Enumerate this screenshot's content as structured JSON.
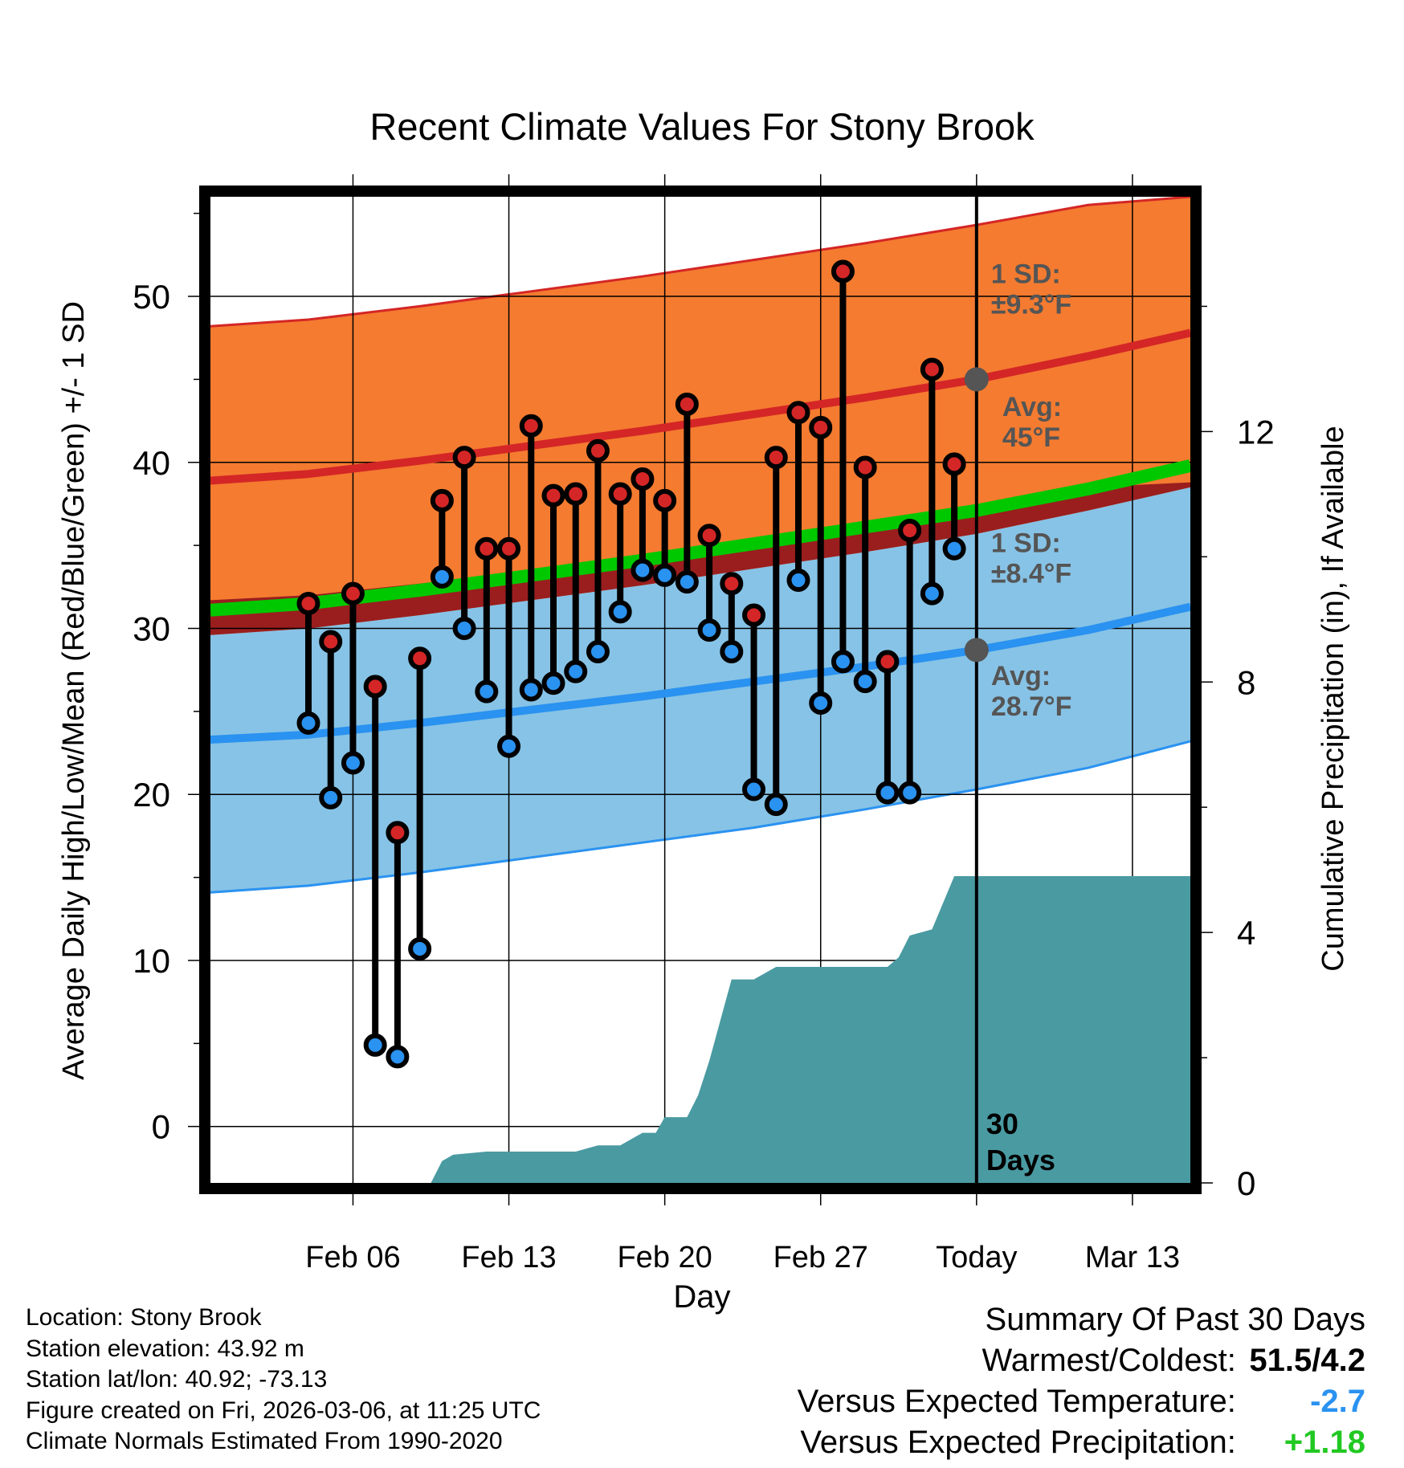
{
  "chart_data": {
    "type": "line",
    "title": "Recent Climate Values For Stony Brook",
    "xlabel": "Day",
    "ylabel": "Average Daily High/Low/Mean (Red/Blue/Green) +/- 1 SD",
    "y2label": "Cumulative Precipitation (in), If Available",
    "ylim": [
      -3.4,
      56
    ],
    "y2lim": [
      0,
      15.75
    ],
    "xlim_days": [
      -34.4,
      9.6
    ],
    "y_ticks": [
      0,
      10,
      20,
      30,
      40,
      50
    ],
    "y2_ticks": [
      0,
      4,
      8,
      12
    ],
    "x_ticks": [
      {
        "day": -28,
        "label": "Feb 06"
      },
      {
        "day": -21,
        "label": "Feb 13"
      },
      {
        "day": -14,
        "label": "Feb 20"
      },
      {
        "day": -7,
        "label": "Feb 27"
      },
      {
        "day": 0,
        "label": "Today"
      },
      {
        "day": 7,
        "label": "Mar 13"
      }
    ],
    "today_day": 0,
    "today_label": [
      "30",
      "Days"
    ],
    "normals": {
      "days": [
        -34.4,
        -30,
        -25,
        -20,
        -15,
        -10,
        -5,
        0,
        5,
        9.6
      ],
      "high_avg": [
        38.9,
        39.3,
        40.1,
        41.0,
        41.9,
        42.9,
        43.9,
        45.0,
        46.4,
        47.8
      ],
      "high_upper": [
        48.2,
        48.6,
        49.4,
        50.3,
        51.2,
        52.2,
        53.2,
        54.3,
        55.5,
        56.0
      ],
      "high_lower": [
        29.6,
        30.0,
        30.8,
        31.7,
        32.6,
        33.6,
        34.6,
        35.7,
        37.1,
        38.5
      ],
      "mean_avg": [
        31.1,
        31.5,
        32.3,
        33.2,
        34.1,
        35.1,
        36.1,
        37.1,
        38.4,
        39.8
      ],
      "low_avg": [
        23.3,
        23.6,
        24.3,
        25.1,
        25.9,
        26.8,
        27.7,
        28.7,
        29.9,
        31.3
      ],
      "low_upper": [
        31.7,
        32.0,
        32.7,
        33.5,
        34.3,
        35.2,
        36.1,
        37.1,
        38.5,
        38.8
      ],
      "low_lower": [
        14.1,
        14.5,
        15.3,
        16.2,
        17.1,
        18.0,
        19.1,
        20.3,
        21.6,
        23.2
      ]
    },
    "daily": {
      "days": [
        -30,
        -29,
        -28,
        -27,
        -26,
        -25,
        -24,
        -23,
        -22,
        -21,
        -20,
        -19,
        -18,
        -17,
        -16,
        -15,
        -14,
        -13,
        -12,
        -11,
        -10,
        -9,
        -8,
        -7,
        -6,
        -5,
        -4,
        -3,
        -2,
        -1
      ],
      "high": [
        31.5,
        29.2,
        32.1,
        26.5,
        17.7,
        28.2,
        37.7,
        40.3,
        34.8,
        34.8,
        42.2,
        38.0,
        38.1,
        40.7,
        38.1,
        39.0,
        37.7,
        43.5,
        35.6,
        32.7,
        30.8,
        40.3,
        43.0,
        42.1,
        51.5,
        39.7,
        28.0,
        35.9,
        45.6,
        39.9
      ],
      "low": [
        24.3,
        19.8,
        21.9,
        4.9,
        4.2,
        10.7,
        33.1,
        30.0,
        26.2,
        22.9,
        26.3,
        26.7,
        27.4,
        28.6,
        31.0,
        33.5,
        33.2,
        32.8,
        29.9,
        28.6,
        20.3,
        19.4,
        32.9,
        25.5,
        28.0,
        26.8,
        20.1,
        20.1,
        32.1,
        34.8
      ]
    },
    "precip": {
      "days": [
        -34.4,
        -24.5,
        -24,
        -23.5,
        -22,
        -20,
        -19,
        -18,
        -17,
        -16,
        -15,
        -14.4,
        -14,
        -13,
        -12.5,
        -12,
        -11,
        -10,
        -9,
        -8,
        -7,
        -6,
        -5,
        -4,
        -3.5,
        -3,
        -2,
        -1,
        0,
        9.6
      ],
      "values": [
        0,
        0,
        0.35,
        0.45,
        0.5,
        0.5,
        0.5,
        0.5,
        0.6,
        0.6,
        0.8,
        0.8,
        1.05,
        1.05,
        1.4,
        1.95,
        3.25,
        3.25,
        3.45,
        3.45,
        3.45,
        3.45,
        3.45,
        3.45,
        3.6,
        3.95,
        4.05,
        4.9,
        4.9,
        4.9
      ]
    },
    "annotations": [
      {
        "id": "high_sd",
        "lines": [
          "1 SD:",
          "±9.3°F"
        ]
      },
      {
        "id": "high_avg",
        "lines": [
          "Avg:",
          "45°F"
        ],
        "marker_value": 45.0
      },
      {
        "id": "low_sd",
        "lines": [
          "1 SD:",
          "±8.4°F"
        ]
      },
      {
        "id": "low_avg",
        "lines": [
          "Avg:",
          "28.7°F"
        ],
        "marker_value": 28.7
      }
    ],
    "colors": {
      "high_band": "#f47b30",
      "high_line": "#d42626",
      "low_band": "#87c3e6",
      "low_line": "#2a92f0",
      "mean_line": "#00c800",
      "overlap": "#9a1e1e",
      "precip": "#4a9aa2",
      "high_dot": "#d42626",
      "low_dot": "#2a92f0",
      "annotation": "#555555"
    }
  },
  "info": {
    "location": "Location: Stony Brook",
    "elevation": "Station elevation: 43.92 m",
    "latlon": "Station lat/lon: 40.92; -73.13",
    "created": "Figure created on Fri, 2026-03-06, at 11:25 UTC",
    "normals": "Climate Normals Estimated From 1990-2020"
  },
  "summary": {
    "title": "Summary Of Past 30 Days",
    "warm_label": "Warmest/Coldest:",
    "warm_value": "51.5/4.2",
    "temp_label": "Versus Expected Temperature:",
    "temp_value": "-2.7",
    "temp_color": "#2a92f0",
    "precip_label": "Versus Expected Precipitation:",
    "precip_value": "+1.18",
    "precip_color": "#22c822"
  }
}
